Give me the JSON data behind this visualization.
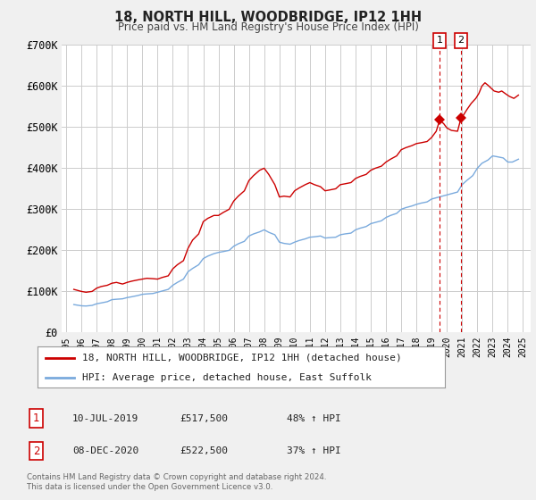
{
  "title": "18, NORTH HILL, WOODBRIDGE, IP12 1HH",
  "subtitle": "Price paid vs. HM Land Registry's House Price Index (HPI)",
  "bg_color": "#f0f0f0",
  "plot_bg_color": "#ffffff",
  "red_color": "#cc0000",
  "blue_color": "#7aaadd",
  "grid_color": "#cccccc",
  "ylim": [
    0,
    700000
  ],
  "xlim_start": 1994.7,
  "xlim_end": 2025.5,
  "yticks": [
    0,
    100000,
    200000,
    300000,
    400000,
    500000,
    600000,
    700000
  ],
  "ytick_labels": [
    "£0",
    "£100K",
    "£200K",
    "£300K",
    "£400K",
    "£500K",
    "£600K",
    "£700K"
  ],
  "xtick_years": [
    1995,
    1996,
    1997,
    1998,
    1999,
    2000,
    2001,
    2002,
    2003,
    2004,
    2005,
    2006,
    2007,
    2008,
    2009,
    2010,
    2011,
    2012,
    2013,
    2014,
    2015,
    2016,
    2017,
    2018,
    2019,
    2020,
    2021,
    2022,
    2023,
    2024,
    2025
  ],
  "sale1_x": 2019.53,
  "sale1_y": 517500,
  "sale2_x": 2020.93,
  "sale2_y": 522500,
  "vline1_x": 2019.53,
  "vline2_x": 2020.93,
  "legend_line1": "18, NORTH HILL, WOODBRIDGE, IP12 1HH (detached house)",
  "legend_line2": "HPI: Average price, detached house, East Suffolk",
  "ann1_date": "10-JUL-2019",
  "ann1_price": "£517,500",
  "ann1_hpi": "48% ↑ HPI",
  "ann2_date": "08-DEC-2020",
  "ann2_price": "£522,500",
  "ann2_hpi": "37% ↑ HPI",
  "footer1": "Contains HM Land Registry data © Crown copyright and database right 2024.",
  "footer2": "This data is licensed under the Open Government Licence v3.0.",
  "red_hpi_data": [
    [
      1995.5,
      105000
    ],
    [
      1996.0,
      100000
    ],
    [
      1996.3,
      98000
    ],
    [
      1996.7,
      100000
    ],
    [
      1997.0,
      108000
    ],
    [
      1997.3,
      112000
    ],
    [
      1997.7,
      115000
    ],
    [
      1998.0,
      120000
    ],
    [
      1998.3,
      122000
    ],
    [
      1998.7,
      118000
    ],
    [
      1999.0,
      122000
    ],
    [
      1999.3,
      125000
    ],
    [
      1999.7,
      128000
    ],
    [
      2000.0,
      130000
    ],
    [
      2000.3,
      132000
    ],
    [
      2000.7,
      131000
    ],
    [
      2001.0,
      130000
    ],
    [
      2001.3,
      134000
    ],
    [
      2001.7,
      138000
    ],
    [
      2002.0,
      155000
    ],
    [
      2002.3,
      165000
    ],
    [
      2002.7,
      175000
    ],
    [
      2003.0,
      205000
    ],
    [
      2003.3,
      225000
    ],
    [
      2003.7,
      240000
    ],
    [
      2004.0,
      270000
    ],
    [
      2004.3,
      278000
    ],
    [
      2004.7,
      285000
    ],
    [
      2005.0,
      285000
    ],
    [
      2005.3,
      292000
    ],
    [
      2005.7,
      300000
    ],
    [
      2006.0,
      320000
    ],
    [
      2006.3,
      332000
    ],
    [
      2006.7,
      345000
    ],
    [
      2007.0,
      370000
    ],
    [
      2007.3,
      382000
    ],
    [
      2007.7,
      395000
    ],
    [
      2008.0,
      400000
    ],
    [
      2008.3,
      385000
    ],
    [
      2008.7,
      360000
    ],
    [
      2009.0,
      330000
    ],
    [
      2009.3,
      332000
    ],
    [
      2009.7,
      330000
    ],
    [
      2010.0,
      345000
    ],
    [
      2010.3,
      352000
    ],
    [
      2010.7,
      360000
    ],
    [
      2011.0,
      365000
    ],
    [
      2011.3,
      360000
    ],
    [
      2011.7,
      355000
    ],
    [
      2012.0,
      345000
    ],
    [
      2012.3,
      347000
    ],
    [
      2012.7,
      350000
    ],
    [
      2013.0,
      360000
    ],
    [
      2013.3,
      362000
    ],
    [
      2013.7,
      365000
    ],
    [
      2014.0,
      375000
    ],
    [
      2014.3,
      380000
    ],
    [
      2014.7,
      385000
    ],
    [
      2015.0,
      395000
    ],
    [
      2015.3,
      400000
    ],
    [
      2015.7,
      405000
    ],
    [
      2016.0,
      415000
    ],
    [
      2016.3,
      422000
    ],
    [
      2016.7,
      430000
    ],
    [
      2017.0,
      445000
    ],
    [
      2017.3,
      450000
    ],
    [
      2017.7,
      455000
    ],
    [
      2018.0,
      460000
    ],
    [
      2018.3,
      462000
    ],
    [
      2018.7,
      465000
    ],
    [
      2019.0,
      475000
    ],
    [
      2019.3,
      490000
    ],
    [
      2019.53,
      517500
    ],
    [
      2019.8,
      508000
    ],
    [
      2020.0,
      498000
    ],
    [
      2020.3,
      492000
    ],
    [
      2020.7,
      490000
    ],
    [
      2020.93,
      522500
    ],
    [
      2021.1,
      530000
    ],
    [
      2021.3,
      542000
    ],
    [
      2021.6,
      558000
    ],
    [
      2021.9,
      570000
    ],
    [
      2022.1,
      582000
    ],
    [
      2022.3,
      600000
    ],
    [
      2022.5,
      608000
    ],
    [
      2022.7,
      602000
    ],
    [
      2022.9,
      595000
    ],
    [
      2023.1,
      588000
    ],
    [
      2023.4,
      585000
    ],
    [
      2023.6,
      588000
    ],
    [
      2023.9,
      580000
    ],
    [
      2024.1,
      575000
    ],
    [
      2024.4,
      570000
    ],
    [
      2024.7,
      578000
    ]
  ],
  "blue_hpi_data": [
    [
      1995.5,
      68000
    ],
    [
      1996.0,
      65000
    ],
    [
      1996.3,
      64500
    ],
    [
      1996.7,
      66000
    ],
    [
      1997.0,
      70000
    ],
    [
      1997.3,
      72000
    ],
    [
      1997.7,
      75000
    ],
    [
      1998.0,
      80000
    ],
    [
      1998.3,
      81000
    ],
    [
      1998.7,
      82000
    ],
    [
      1999.0,
      85000
    ],
    [
      1999.3,
      87000
    ],
    [
      1999.7,
      90000
    ],
    [
      2000.0,
      93000
    ],
    [
      2000.3,
      94000
    ],
    [
      2000.7,
      95000
    ],
    [
      2001.0,
      98000
    ],
    [
      2001.3,
      101000
    ],
    [
      2001.7,
      105000
    ],
    [
      2002.0,
      115000
    ],
    [
      2002.3,
      122000
    ],
    [
      2002.7,
      130000
    ],
    [
      2003.0,
      148000
    ],
    [
      2003.3,
      156000
    ],
    [
      2003.7,
      165000
    ],
    [
      2004.0,
      180000
    ],
    [
      2004.3,
      186000
    ],
    [
      2004.7,
      192000
    ],
    [
      2005.0,
      195000
    ],
    [
      2005.3,
      197000
    ],
    [
      2005.7,
      200000
    ],
    [
      2006.0,
      210000
    ],
    [
      2006.3,
      216000
    ],
    [
      2006.7,
      222000
    ],
    [
      2007.0,
      235000
    ],
    [
      2007.3,
      240000
    ],
    [
      2007.7,
      245000
    ],
    [
      2008.0,
      250000
    ],
    [
      2008.3,
      244000
    ],
    [
      2008.7,
      238000
    ],
    [
      2009.0,
      220000
    ],
    [
      2009.3,
      217000
    ],
    [
      2009.7,
      215000
    ],
    [
      2010.0,
      220000
    ],
    [
      2010.3,
      224000
    ],
    [
      2010.7,
      228000
    ],
    [
      2011.0,
      232000
    ],
    [
      2011.3,
      233000
    ],
    [
      2011.7,
      235000
    ],
    [
      2012.0,
      230000
    ],
    [
      2012.3,
      231000
    ],
    [
      2012.7,
      232000
    ],
    [
      2013.0,
      238000
    ],
    [
      2013.3,
      240000
    ],
    [
      2013.7,
      242000
    ],
    [
      2014.0,
      250000
    ],
    [
      2014.3,
      254000
    ],
    [
      2014.7,
      258000
    ],
    [
      2015.0,
      265000
    ],
    [
      2015.3,
      268000
    ],
    [
      2015.7,
      272000
    ],
    [
      2016.0,
      280000
    ],
    [
      2016.3,
      285000
    ],
    [
      2016.7,
      290000
    ],
    [
      2017.0,
      300000
    ],
    [
      2017.3,
      304000
    ],
    [
      2017.7,
      308000
    ],
    [
      2018.0,
      312000
    ],
    [
      2018.3,
      315000
    ],
    [
      2018.7,
      318000
    ],
    [
      2019.0,
      325000
    ],
    [
      2019.3,
      328000
    ],
    [
      2019.7,
      332000
    ],
    [
      2020.0,
      335000
    ],
    [
      2020.3,
      338000
    ],
    [
      2020.7,
      342000
    ],
    [
      2021.0,
      360000
    ],
    [
      2021.3,
      370000
    ],
    [
      2021.7,
      382000
    ],
    [
      2022.0,
      400000
    ],
    [
      2022.3,
      412000
    ],
    [
      2022.7,
      420000
    ],
    [
      2023.0,
      430000
    ],
    [
      2023.3,
      428000
    ],
    [
      2023.7,
      425000
    ],
    [
      2024.0,
      415000
    ],
    [
      2024.3,
      415000
    ],
    [
      2024.7,
      422000
    ]
  ]
}
